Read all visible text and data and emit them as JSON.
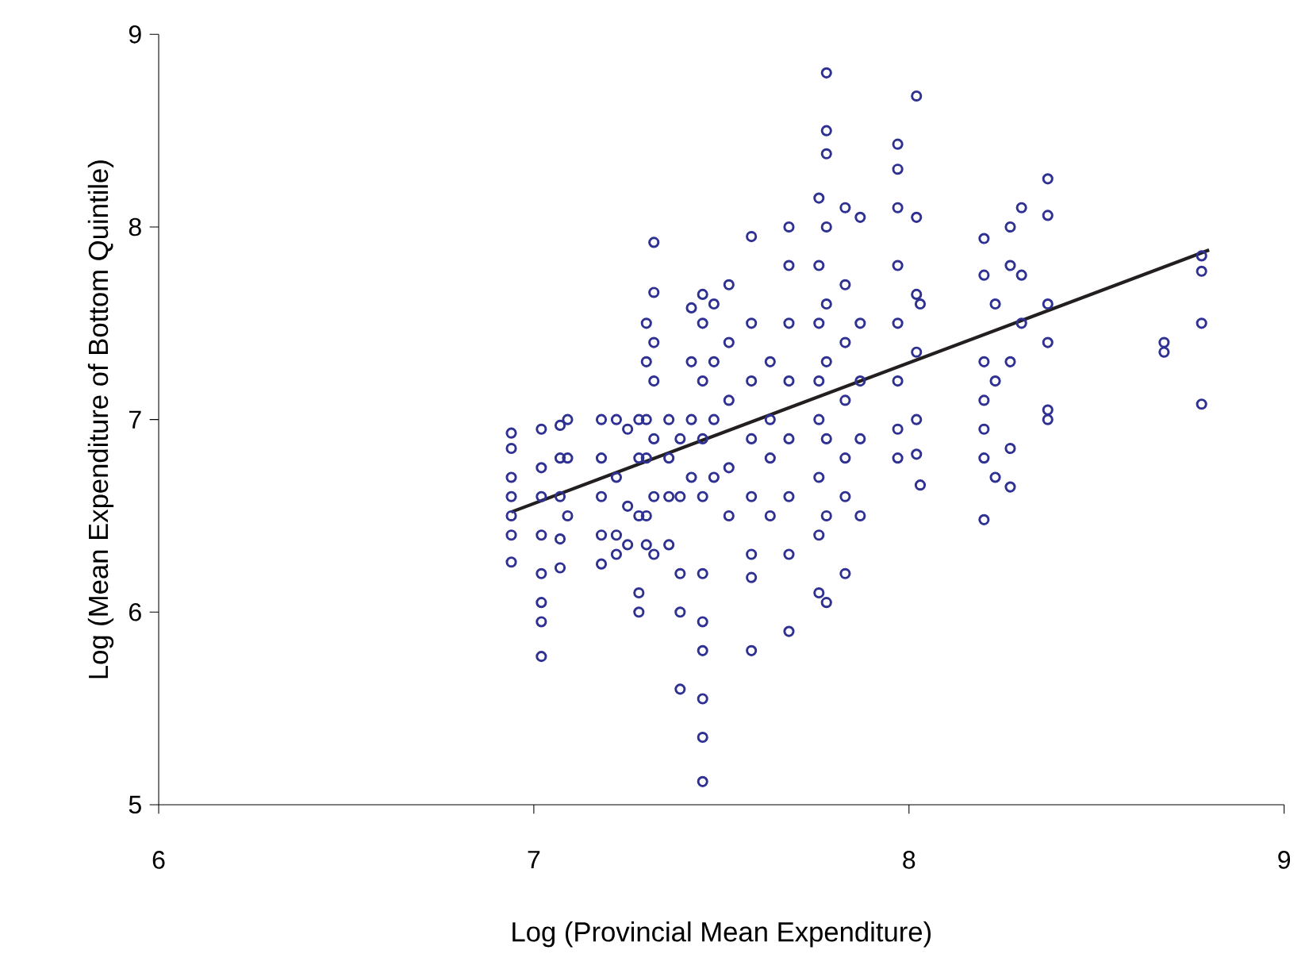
{
  "chart_data": {
    "type": "scatter",
    "xlabel": "Log (Provincial Mean Expenditure)",
    "ylabel": "Log (Mean Expenditure of Bottom Quintile)",
    "xlim": [
      6,
      9
    ],
    "ylim": [
      5,
      9
    ],
    "xticks": [
      6,
      7,
      8,
      9
    ],
    "yticks": [
      5,
      6,
      7,
      8,
      9
    ],
    "series": [
      {
        "marker": "circle",
        "color": "#2e3192",
        "x": [
          6.94,
          6.94,
          6.94,
          6.94,
          6.94,
          6.94,
          6.94,
          7.02,
          7.02,
          7.02,
          7.02,
          7.02,
          7.02,
          7.02,
          7.02,
          7.07,
          7.07,
          7.07,
          7.07,
          7.07,
          7.09,
          7.09,
          7.09,
          7.18,
          7.18,
          7.18,
          7.18,
          7.18,
          7.22,
          7.22,
          7.22,
          7.22,
          7.25,
          7.25,
          7.25,
          7.28,
          7.28,
          7.28,
          7.28,
          7.28,
          7.3,
          7.3,
          7.3,
          7.3,
          7.3,
          7.3,
          7.32,
          7.32,
          7.32,
          7.32,
          7.32,
          7.32,
          7.32,
          7.36,
          7.36,
          7.36,
          7.36,
          7.39,
          7.39,
          7.39,
          7.39,
          7.39,
          7.42,
          7.42,
          7.42,
          7.42,
          7.45,
          7.45,
          7.45,
          7.45,
          7.45,
          7.45,
          7.45,
          7.45,
          7.45,
          7.45,
          7.45,
          7.48,
          7.48,
          7.48,
          7.48,
          7.52,
          7.52,
          7.52,
          7.52,
          7.52,
          7.58,
          7.58,
          7.58,
          7.58,
          7.58,
          7.58,
          7.58,
          7.58,
          7.63,
          7.63,
          7.63,
          7.63,
          7.68,
          7.68,
          7.68,
          7.68,
          7.68,
          7.68,
          7.68,
          7.68,
          7.76,
          7.76,
          7.76,
          7.76,
          7.76,
          7.76,
          7.76,
          7.76,
          7.78,
          7.78,
          7.78,
          7.78,
          7.78,
          7.78,
          7.78,
          7.78,
          7.78,
          7.83,
          7.83,
          7.83,
          7.83,
          7.83,
          7.83,
          7.83,
          7.87,
          7.87,
          7.87,
          7.87,
          7.87,
          7.97,
          7.97,
          7.97,
          7.97,
          7.97,
          7.97,
          7.97,
          7.97,
          8.02,
          8.02,
          8.02,
          8.02,
          8.02,
          8.02,
          8.03,
          8.03,
          8.2,
          8.2,
          8.2,
          8.2,
          8.2,
          8.2,
          8.2,
          8.23,
          8.23,
          8.23,
          8.27,
          8.27,
          8.27,
          8.27,
          8.27,
          8.3,
          8.3,
          8.3,
          8.37,
          8.37,
          8.37,
          8.37,
          8.37,
          8.37,
          8.68,
          8.68,
          8.78,
          8.78,
          8.78,
          8.78
        ],
        "values": [
          6.93,
          6.85,
          6.7,
          6.6,
          6.5,
          6.4,
          6.26,
          6.95,
          6.75,
          6.6,
          6.4,
          6.2,
          6.05,
          5.95,
          5.77,
          6.97,
          6.8,
          6.6,
          6.38,
          6.23,
          7.0,
          6.8,
          6.5,
          7.0,
          6.8,
          6.6,
          6.4,
          6.25,
          7.0,
          6.7,
          6.4,
          6.3,
          6.95,
          6.55,
          6.35,
          7.0,
          6.8,
          6.5,
          6.1,
          6.0,
          7.5,
          7.3,
          7.0,
          6.8,
          6.5,
          6.35,
          7.92,
          7.66,
          7.4,
          7.2,
          6.9,
          6.6,
          6.3,
          7.0,
          6.8,
          6.6,
          6.35,
          6.9,
          6.6,
          6.2,
          6.0,
          5.6,
          7.58,
          7.3,
          7.0,
          6.7,
          7.65,
          7.5,
          7.2,
          6.9,
          6.6,
          6.2,
          5.95,
          5.8,
          5.55,
          5.35,
          5.12,
          7.6,
          7.3,
          7.0,
          6.7,
          7.7,
          7.4,
          7.1,
          6.75,
          6.5,
          7.95,
          7.5,
          7.2,
          6.9,
          6.6,
          6.3,
          6.18,
          5.8,
          7.3,
          7.0,
          6.8,
          6.5,
          8.0,
          7.8,
          7.5,
          7.2,
          6.9,
          6.6,
          6.3,
          5.9,
          8.15,
          7.8,
          7.5,
          7.2,
          7.0,
          6.7,
          6.4,
          6.1,
          8.8,
          8.5,
          8.38,
          8.0,
          7.6,
          7.3,
          6.9,
          6.5,
          6.05,
          8.1,
          7.7,
          7.4,
          7.1,
          6.8,
          6.6,
          6.2,
          8.05,
          7.5,
          7.2,
          6.9,
          6.5,
          8.43,
          8.3,
          8.1,
          7.8,
          7.5,
          7.2,
          6.95,
          6.8,
          8.68,
          8.05,
          7.65,
          7.35,
          7.0,
          6.82,
          7.6,
          6.66,
          7.94,
          7.75,
          7.3,
          7.1,
          6.95,
          6.8,
          6.48,
          7.6,
          7.2,
          6.7,
          8.0,
          7.8,
          7.3,
          6.85,
          6.65,
          8.1,
          7.75,
          7.5,
          8.25,
          8.06,
          7.6,
          7.4,
          7.05,
          7.0,
          7.4,
          7.35,
          7.85,
          7.77,
          7.5,
          7.08
        ]
      },
      {
        "type": "line",
        "marker": "none",
        "line_style": "solid",
        "color": "#231f20",
        "x": [
          6.94,
          8.8
        ],
        "values": [
          6.52,
          7.88
        ]
      }
    ]
  }
}
